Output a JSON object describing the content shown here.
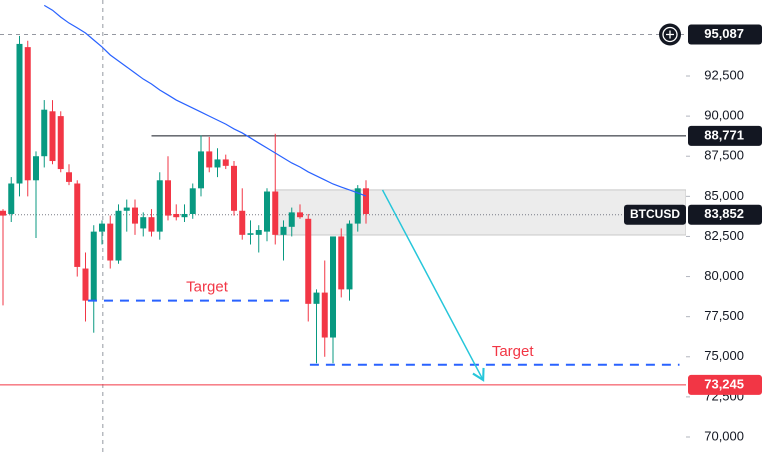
{
  "chart_data": {
    "type": "candlestick",
    "symbol": "BTCUSD",
    "up_color": "#089981",
    "down_color": "#f23645",
    "open": [
      84100,
      83900,
      85800,
      94300,
      86000,
      87500,
      90300,
      90000,
      86500,
      85800,
      80500,
      78500,
      82800,
      83300,
      81000,
      84100,
      84300,
      83000,
      83700,
      82800,
      86000,
      83900,
      83700,
      83900,
      85500,
      87800,
      86800,
      87300,
      86900,
      84100,
      82600,
      82600,
      82800,
      85300,
      82600,
      83100,
      84000,
      83600,
      78300,
      79000,
      76200,
      82500,
      79200,
      83300,
      85500
    ],
    "high": [
      84200,
      86200,
      95000,
      94700,
      87800,
      91000,
      91000,
      90300,
      87000,
      86000,
      81500,
      83200,
      83500,
      83800,
      84500,
      84800,
      84800,
      84000,
      84200,
      86500,
      87500,
      84500,
      84500,
      85800,
      88800,
      88700,
      88000,
      87600,
      87200,
      85500,
      83500,
      83200,
      85500,
      88900,
      83500,
      84300,
      84500,
      83900,
      79200,
      81000,
      82500,
      83000,
      83500,
      85700,
      86000
    ],
    "low": [
      78200,
      83400,
      85000,
      85000,
      82400,
      86800,
      87000,
      86500,
      85700,
      80000,
      77200,
      76500,
      82000,
      80500,
      80800,
      82800,
      82600,
      82500,
      82500,
      82300,
      83500,
      83500,
      83400,
      83600,
      85000,
      86500,
      86200,
      86700,
      83800,
      82300,
      82000,
      81500,
      82200,
      82000,
      81000,
      82500,
      83600,
      77200,
      74600,
      75000,
      74600,
      78700,
      78500,
      82800,
      83300
    ],
    "close": [
      83800,
      85800,
      94500,
      86000,
      87500,
      90400,
      87200,
      86700,
      85900,
      80600,
      78500,
      82800,
      83300,
      81000,
      84100,
      84300,
      83300,
      83700,
      82800,
      86000,
      83800,
      83700,
      83900,
      85500,
      87800,
      86800,
      87300,
      86900,
      84100,
      82600,
      82700,
      82900,
      85300,
      82600,
      83100,
      84000,
      83700,
      78300,
      79000,
      76200,
      82500,
      79200,
      83300,
      85500,
      83900
    ],
    "moving_average": {
      "color": "#2962ff",
      "values": [
        null,
        null,
        null,
        null,
        null,
        96900,
        96600,
        96170,
        95800,
        95500,
        95180,
        94744,
        94310,
        93810,
        93435,
        93060,
        92690,
        92310,
        92000,
        91630,
        91320,
        91000,
        90750,
        90500,
        90250,
        90000,
        89750,
        89500,
        89200,
        88950,
        88640,
        88320,
        88010,
        87700,
        87390,
        87080,
        86830,
        86520,
        86270,
        86020,
        85770,
        85580,
        85400,
        85210,
        85020
      ]
    },
    "ylim": [
      69065,
      97237
    ],
    "yticks": [
      {
        "value": 70000,
        "label": "70,000"
      },
      {
        "value": 72500,
        "label": "72,500"
      },
      {
        "value": 75000,
        "label": "75,000"
      },
      {
        "value": 77500,
        "label": "77,500"
      },
      {
        "value": 80000,
        "label": "80,000"
      },
      {
        "value": 82500,
        "label": "82,500"
      },
      {
        "value": 85000,
        "label": "85,000"
      },
      {
        "value": 87500,
        "label": "87,500"
      },
      {
        "value": 90000,
        "label": "90,000"
      },
      {
        "value": 92500,
        "label": "92,500"
      }
    ],
    "top_marker": {
      "value": 95087,
      "label": "95,087"
    },
    "resistance": {
      "value": 88771,
      "label": "88,771",
      "from": 18
    },
    "last_price": {
      "value": 83852,
      "label": "83,852"
    },
    "support": {
      "value": 73245,
      "label": "73,245"
    },
    "crosshair_x": 12.1,
    "zone": {
      "low": 82590,
      "high": 85400,
      "from": 33
    },
    "targets": [
      {
        "label": "Target",
        "value": 78500,
        "from": 10.3,
        "to": 34.8
      },
      {
        "label": "Target",
        "value": 74500,
        "from": 37.2,
        "to": 82
      }
    ],
    "arrow": {
      "from": [
        46,
        85400
      ],
      "to": [
        58.2,
        73550
      ]
    }
  }
}
